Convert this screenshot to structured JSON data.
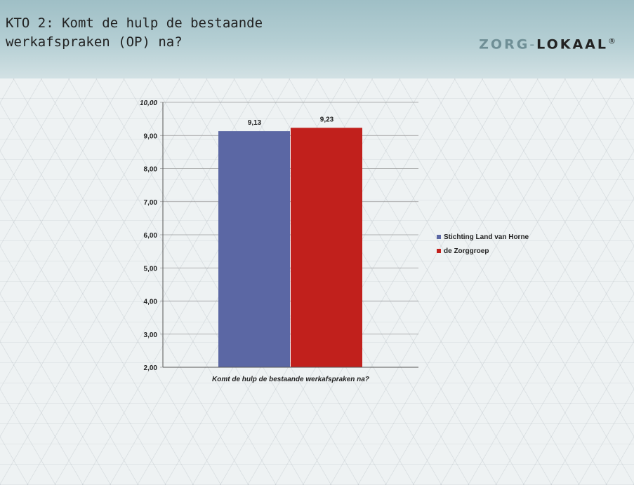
{
  "header": {
    "title": "KTO 2: Komt de hulp de bestaande\nwerkafspraken (OP) na?",
    "logo_part1": "ZORG",
    "logo_dash": "-",
    "logo_part2": "LOKAAL",
    "logo_mark": "®"
  },
  "colors": {
    "series1": "#5b67a4",
    "series2": "#c1201c",
    "header": "#a9c6cc",
    "gridline": "#9a9a9a"
  },
  "chart_data": {
    "type": "bar",
    "categories": [
      "Komt de hulp de bestaande werkafspraken na?"
    ],
    "series": [
      {
        "name": "Stichting Land van Horne",
        "values": [
          9.13
        ],
        "label": "9,13"
      },
      {
        "name": "de Zorggroep",
        "values": [
          9.23
        ],
        "label": "9,23"
      }
    ],
    "ylim": [
      2,
      10
    ],
    "yticks": [
      "2,00",
      "3,00",
      "4,00",
      "5,00",
      "6,00",
      "7,00",
      "8,00",
      "9,00",
      "10,00"
    ],
    "grid": true,
    "legend_position": "right"
  }
}
